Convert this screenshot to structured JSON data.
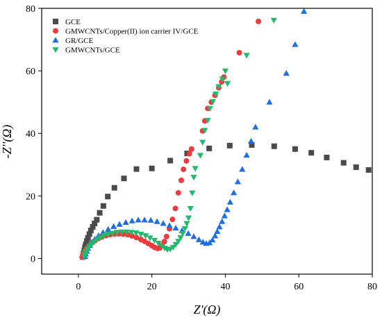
{
  "chart_data": {
    "type": "scatter",
    "xlabel": "Z'(Ω)",
    "ylabel": "-Z''(Ω)",
    "xlim": [
      -10,
      80
    ],
    "ylim": [
      -5,
      80
    ],
    "xticks": [
      0,
      20,
      40,
      60,
      80
    ],
    "yticks": [
      0,
      20,
      40,
      60,
      80
    ],
    "legend_position": "top-left",
    "series": [
      {
        "name": "GCE",
        "color": "#4a4a4a",
        "marker": "square",
        "points": [
          [
            1.2,
            0.5
          ],
          [
            1.4,
            1.6
          ],
          [
            1.6,
            2.6
          ],
          [
            1.8,
            3.6
          ],
          [
            2.0,
            4.5
          ],
          [
            2.3,
            5.6
          ],
          [
            2.6,
            6.6
          ],
          [
            3.0,
            7.8
          ],
          [
            3.4,
            9.0
          ],
          [
            3.9,
            10.1
          ],
          [
            4.4,
            11.2
          ],
          [
            5.0,
            12.4
          ],
          [
            5.8,
            14.6
          ],
          [
            6.8,
            16.8
          ],
          [
            8.0,
            19.8
          ],
          [
            9.8,
            22.6
          ],
          [
            12.4,
            25.6
          ],
          [
            15.8,
            28.6
          ],
          [
            20.0,
            28.8
          ],
          [
            25.0,
            31.3
          ],
          [
            29.6,
            33.6
          ],
          [
            35.6,
            35.2
          ],
          [
            41.2,
            36.1
          ],
          [
            47.2,
            36.3
          ],
          [
            53.3,
            35.9
          ],
          [
            59.0,
            35.0
          ],
          [
            63.4,
            33.8
          ],
          [
            67.6,
            32.3
          ],
          [
            72.2,
            30.6
          ],
          [
            75.6,
            29.2
          ],
          [
            79.0,
            28.3
          ]
        ]
      },
      {
        "name": "GMWCNTs/Copper(II) ion carrier IV/GCE",
        "color": "#ef3b3b",
        "marker": "circle",
        "points": [
          [
            1.0,
            0.4
          ],
          [
            1.2,
            1.0
          ],
          [
            1.5,
            1.8
          ],
          [
            1.9,
            2.6
          ],
          [
            2.4,
            3.4
          ],
          [
            3.0,
            4.2
          ],
          [
            3.7,
            5.0
          ],
          [
            4.5,
            5.7
          ],
          [
            5.4,
            6.4
          ],
          [
            6.4,
            6.9
          ],
          [
            7.5,
            7.3
          ],
          [
            8.6,
            7.6
          ],
          [
            9.8,
            7.8
          ],
          [
            11.0,
            7.9
          ],
          [
            12.2,
            7.8
          ],
          [
            13.4,
            7.6
          ],
          [
            14.6,
            7.2
          ],
          [
            15.8,
            6.7
          ],
          [
            17.0,
            6.1
          ],
          [
            18.0,
            5.5
          ],
          [
            19.0,
            4.8
          ],
          [
            20.0,
            4.1
          ],
          [
            20.8,
            3.5
          ],
          [
            21.6,
            3.2
          ],
          [
            22.2,
            3.4
          ],
          [
            22.8,
            4.2
          ],
          [
            23.4,
            5.4
          ],
          [
            24.0,
            7.0
          ],
          [
            24.8,
            9.5
          ],
          [
            25.6,
            12.5
          ],
          [
            26.4,
            16.0
          ],
          [
            27.2,
            21.0
          ],
          [
            28.0,
            25.0
          ],
          [
            28.6,
            28.5
          ],
          [
            29.4,
            31.2
          ],
          [
            30.2,
            33.5
          ],
          [
            30.8,
            35.0
          ],
          [
            33.8,
            40.8
          ],
          [
            34.4,
            44.0
          ],
          [
            35.2,
            48.0
          ],
          [
            36.2,
            50.0
          ],
          [
            37.2,
            52.2
          ],
          [
            38.2,
            54.6
          ],
          [
            39.0,
            56.5
          ],
          [
            39.6,
            58.0
          ],
          [
            43.8,
            65.8
          ],
          [
            49.0,
            75.8
          ]
        ]
      },
      {
        "name": "GR/GCE",
        "color": "#1f6fe0",
        "marker": "triangle-up",
        "points": [
          [
            1.8,
            0.6
          ],
          [
            2.0,
            1.4
          ],
          [
            2.3,
            2.3
          ],
          [
            2.6,
            3.2
          ],
          [
            3.1,
            4.2
          ],
          [
            3.7,
            5.2
          ],
          [
            4.5,
            6.2
          ],
          [
            5.5,
            7.3
          ],
          [
            6.7,
            8.3
          ],
          [
            8.1,
            9.3
          ],
          [
            9.6,
            10.2
          ],
          [
            11.2,
            10.9
          ],
          [
            12.9,
            11.5
          ],
          [
            14.6,
            12.0
          ],
          [
            16.3,
            12.3
          ],
          [
            18.0,
            12.3
          ],
          [
            19.7,
            12.2
          ],
          [
            21.4,
            11.8
          ],
          [
            23.1,
            11.2
          ],
          [
            24.8,
            10.5
          ],
          [
            26.5,
            9.7
          ],
          [
            28.2,
            8.9
          ],
          [
            29.9,
            8.0
          ],
          [
            31.4,
            7.0
          ],
          [
            32.8,
            6.0
          ],
          [
            33.9,
            5.2
          ],
          [
            34.8,
            4.8
          ],
          [
            35.7,
            5.0
          ],
          [
            36.5,
            5.9
          ],
          [
            37.2,
            7.2
          ],
          [
            37.8,
            8.6
          ],
          [
            38.4,
            10.1
          ],
          [
            39.1,
            11.8
          ],
          [
            39.8,
            13.6
          ],
          [
            40.5,
            15.6
          ],
          [
            41.3,
            18.0
          ],
          [
            42.3,
            21.0
          ],
          [
            43.4,
            24.5
          ],
          [
            44.6,
            28.5
          ],
          [
            45.8,
            33.0
          ],
          [
            47.0,
            37.5
          ],
          [
            48.2,
            42.0
          ],
          [
            52.0,
            50.0
          ],
          [
            56.6,
            59.2
          ],
          [
            59.0,
            68.4
          ],
          [
            61.4,
            79.0
          ]
        ]
      },
      {
        "name": "GMWCNTs/GCE",
        "color": "#24b86a",
        "marker": "triangle-down",
        "points": [
          [
            1.6,
            0.6
          ],
          [
            1.8,
            1.4
          ],
          [
            2.1,
            2.2
          ],
          [
            2.5,
            3.0
          ],
          [
            3.0,
            3.8
          ],
          [
            3.6,
            4.6
          ],
          [
            4.3,
            5.4
          ],
          [
            5.1,
            6.1
          ],
          [
            6.0,
            6.7
          ],
          [
            7.0,
            7.3
          ],
          [
            8.1,
            7.8
          ],
          [
            9.3,
            8.1
          ],
          [
            10.5,
            8.4
          ],
          [
            11.8,
            8.5
          ],
          [
            13.1,
            8.5
          ],
          [
            14.4,
            8.4
          ],
          [
            15.7,
            8.2
          ],
          [
            17.0,
            7.8
          ],
          [
            18.3,
            7.3
          ],
          [
            19.5,
            6.6
          ],
          [
            20.7,
            5.8
          ],
          [
            21.8,
            4.9
          ],
          [
            22.7,
            4.0
          ],
          [
            23.5,
            3.3
          ],
          [
            24.2,
            2.9
          ],
          [
            25.0,
            3.0
          ],
          [
            25.8,
            3.6
          ],
          [
            26.5,
            4.5
          ],
          [
            27.2,
            5.5
          ],
          [
            27.8,
            6.7
          ],
          [
            28.4,
            8.0
          ],
          [
            29.0,
            9.6
          ],
          [
            29.5,
            11.2
          ],
          [
            30.0,
            13.0
          ],
          [
            30.5,
            16.0
          ],
          [
            31.0,
            21.0
          ],
          [
            31.4,
            26.0
          ],
          [
            31.8,
            28.8
          ],
          [
            33.2,
            33.0
          ],
          [
            33.8,
            37.2
          ],
          [
            34.4,
            41.0
          ],
          [
            35.2,
            44.2
          ],
          [
            35.8,
            48.0
          ],
          [
            36.6,
            50.2
          ],
          [
            37.4,
            52.6
          ],
          [
            38.2,
            55.0
          ],
          [
            39.2,
            57.4
          ],
          [
            40.0,
            60.0
          ],
          [
            40.6,
            56.0
          ],
          [
            45.8,
            65.0
          ],
          [
            53.2,
            76.2
          ]
        ]
      }
    ]
  }
}
